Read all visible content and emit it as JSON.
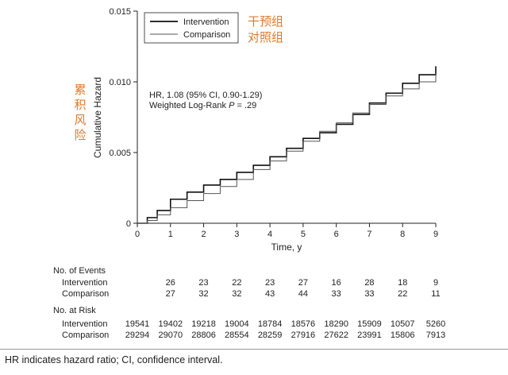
{
  "chart_data": {
    "type": "line",
    "xlabel": "Time, y",
    "ylabel": "Cumulative Hazard",
    "xlim": [
      0,
      9
    ],
    "ylim": [
      0,
      0.015
    ],
    "x_ticks": [
      "0",
      "1",
      "2",
      "3",
      "4",
      "5",
      "6",
      "7",
      "8",
      "9"
    ],
    "y_ticks": [
      "0",
      "0.005",
      "0.010",
      "0.015"
    ],
    "grid": false,
    "legend_position": "top-left",
    "series": [
      {
        "name": "Intervention",
        "color": "#111111",
        "points": [
          [
            0,
            0
          ],
          [
            0.3,
            0.0004
          ],
          [
            0.6,
            0.0009
          ],
          [
            1.0,
            0.0017
          ],
          [
            1.5,
            0.0022
          ],
          [
            2.0,
            0.0027
          ],
          [
            2.5,
            0.0031
          ],
          [
            3.0,
            0.0036
          ],
          [
            3.5,
            0.0041
          ],
          [
            4.0,
            0.0047
          ],
          [
            4.5,
            0.0053
          ],
          [
            5.0,
            0.006
          ],
          [
            5.5,
            0.0064
          ],
          [
            6.0,
            0.007
          ],
          [
            6.5,
            0.0077
          ],
          [
            7.0,
            0.0085
          ],
          [
            7.5,
            0.0092
          ],
          [
            8.0,
            0.0099
          ],
          [
            8.5,
            0.0105
          ],
          [
            9.0,
            0.0111
          ]
        ]
      },
      {
        "name": "Comparison",
        "color": "#555555",
        "points": [
          [
            0,
            0
          ],
          [
            0.3,
            0.0002
          ],
          [
            0.6,
            0.0006
          ],
          [
            1.0,
            0.0011
          ],
          [
            1.5,
            0.0016
          ],
          [
            2.0,
            0.0021
          ],
          [
            2.5,
            0.0026
          ],
          [
            3.0,
            0.0031
          ],
          [
            3.5,
            0.0038
          ],
          [
            4.0,
            0.0044
          ],
          [
            4.5,
            0.0051
          ],
          [
            5.0,
            0.0058
          ],
          [
            5.5,
            0.0065
          ],
          [
            6.0,
            0.0071
          ],
          [
            6.5,
            0.0078
          ],
          [
            7.0,
            0.0084
          ],
          [
            7.5,
            0.009
          ],
          [
            8.0,
            0.0095
          ],
          [
            8.5,
            0.01
          ],
          [
            9.0,
            0.0106
          ]
        ]
      }
    ],
    "annotations": [
      "HR, 1.08 (95% CI, 0.90-1.29)",
      "Weighted Log-Rank",
      "P",
      " = .29"
    ]
  },
  "labels_cn": {
    "legend_cn_1": "干预组",
    "legend_cn_2": "对照组",
    "ylabel_cn": [
      "累",
      "积",
      "风",
      "险"
    ]
  },
  "table": {
    "events_title": "No. of Events",
    "risk_title": "No. at Risk",
    "row_names": [
      "Intervention",
      "Comparison"
    ],
    "events": {
      "times": [
        "1",
        "2",
        "3",
        "4",
        "5",
        "6",
        "7",
        "8",
        "9"
      ],
      "intervention": [
        "26",
        "23",
        "22",
        "23",
        "27",
        "16",
        "28",
        "18",
        "9"
      ],
      "comparison": [
        "27",
        "32",
        "32",
        "43",
        "44",
        "33",
        "33",
        "22",
        "11"
      ]
    },
    "at_risk": {
      "times": [
        "0",
        "1",
        "2",
        "3",
        "4",
        "5",
        "6",
        "7",
        "8",
        "9"
      ],
      "intervention": [
        "19541",
        "19402",
        "19218",
        "19004",
        "18784",
        "18576",
        "18290",
        "15909",
        "10507",
        "5260"
      ],
      "comparison": [
        "29294",
        "29070",
        "28806",
        "28554",
        "28259",
        "27916",
        "27622",
        "23991",
        "15806",
        "7913"
      ]
    }
  },
  "footer": "HR indicates hazard ratio; CI, confidence interval."
}
